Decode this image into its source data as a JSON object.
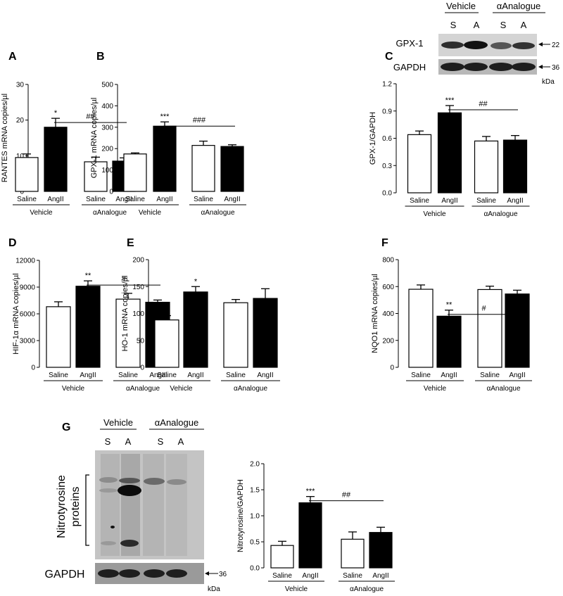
{
  "panels": [
    {
      "id": "A",
      "chart_data": {
        "type": "bar",
        "ylabel": "RANTES mRNA copies/µl",
        "ylim": [
          0,
          30
        ],
        "yticks": [
          "0",
          "10",
          "20",
          "30"
        ],
        "categories": [
          "Saline",
          "AngII",
          "Saline",
          "AngII"
        ],
        "groups": [
          "Vehicle",
          "αAnalogue"
        ],
        "values": [
          9.5,
          18,
          8.3,
          8.5
        ],
        "errors": [
          1.0,
          2.5,
          1.3,
          0.9
        ],
        "fills": [
          "white",
          "black",
          "white",
          "black"
        ],
        "stars": [
          "",
          "*",
          "",
          ""
        ],
        "hash": "##"
      }
    },
    {
      "id": "B",
      "chart_data": {
        "type": "bar",
        "ylabel": "GPX-1 mRNA copies/µl",
        "ylim": [
          0,
          500
        ],
        "yticks": [
          "0",
          "100",
          "200",
          "300",
          "400",
          "500"
        ],
        "categories": [
          "Saline",
          "AngII",
          "Saline",
          "AngII"
        ],
        "groups": [
          "Vehicle",
          "αAnalogue"
        ],
        "values": [
          175,
          305,
          215,
          210
        ],
        "errors": [
          5,
          20,
          20,
          8
        ],
        "fills": [
          "white",
          "black",
          "white",
          "black"
        ],
        "stars": [
          "",
          "***",
          "",
          ""
        ],
        "hash": "###"
      }
    },
    {
      "id": "C",
      "chart_data": {
        "type": "bar",
        "ylabel": "GPX-1/GAPDH",
        "ylim": [
          0,
          1.2
        ],
        "yticks": [
          "0.0",
          "0.3",
          "0.6",
          "0.9",
          "1.2"
        ],
        "categories": [
          "Saline",
          "AngII",
          "Saline",
          "AngII"
        ],
        "groups": [
          "Vehicle",
          "αAnalogue"
        ],
        "values": [
          0.64,
          0.88,
          0.57,
          0.58
        ],
        "errors": [
          0.04,
          0.08,
          0.05,
          0.05
        ],
        "fills": [
          "white",
          "black",
          "white",
          "black"
        ],
        "stars": [
          "",
          "***",
          "",
          ""
        ],
        "hash": "##"
      }
    },
    {
      "id": "D",
      "chart_data": {
        "type": "bar",
        "ylabel": "HIF-1α mRNA copies/µl",
        "ylim": [
          0,
          12000
        ],
        "yticks": [
          "0",
          "3000",
          "6000",
          "9000",
          "12000"
        ],
        "categories": [
          "Saline",
          "AngII",
          "Saline",
          "AngII"
        ],
        "groups": [
          "Vehicle",
          "αAnalogue"
        ],
        "values": [
          6800,
          9100,
          7650,
          7300
        ],
        "errors": [
          550,
          600,
          650,
          250
        ],
        "fills": [
          "white",
          "black",
          "white",
          "black"
        ],
        "stars": [
          "",
          "**",
          "",
          ""
        ],
        "hash": "#"
      }
    },
    {
      "id": "E",
      "chart_data": {
        "type": "bar",
        "ylabel": "HO-1 mRNA copies/µl",
        "ylim": [
          0,
          200
        ],
        "yticks": [
          "0",
          "50",
          "100",
          "150",
          "200"
        ],
        "categories": [
          "Saline",
          "AngII",
          "Saline",
          "AngII"
        ],
        "groups": [
          "Vehicle",
          "αAnalogue"
        ],
        "values": [
          88,
          140,
          120,
          128
        ],
        "errors": [
          8,
          10,
          6,
          18
        ],
        "fills": [
          "white",
          "black",
          "white",
          "black"
        ],
        "stars": [
          "",
          "*",
          "",
          ""
        ],
        "hash": ""
      }
    },
    {
      "id": "F",
      "chart_data": {
        "type": "bar",
        "ylabel": "NQO1 mRNA copies/µl",
        "ylim": [
          0,
          800
        ],
        "yticks": [
          "0",
          "200",
          "400",
          "600",
          "800"
        ],
        "categories": [
          "Saline",
          "AngII",
          "Saline",
          "AngII"
        ],
        "groups": [
          "Vehicle",
          "αAnalogue"
        ],
        "values": [
          580,
          380,
          578,
          545
        ],
        "errors": [
          32,
          45,
          25,
          28
        ],
        "fills": [
          "white",
          "black",
          "white",
          "black"
        ],
        "stars": [
          "",
          "**",
          "",
          ""
        ],
        "hash": "#"
      }
    },
    {
      "id": "G",
      "chart_data": {
        "type": "bar",
        "ylabel": "Nitrotyrosine/GAPDH",
        "ylim": [
          0,
          2.0
        ],
        "yticks": [
          "0.0",
          "0.5",
          "1.0",
          "1.5",
          "2.0"
        ],
        "categories": [
          "Saline",
          "AngII",
          "Saline",
          "AngII"
        ],
        "groups": [
          "Vehicle",
          "αAnalogue"
        ],
        "values": [
          0.43,
          1.25,
          0.55,
          0.68
        ],
        "errors": [
          0.08,
          0.12,
          0.14,
          0.1
        ],
        "fills": [
          "white",
          "black",
          "white",
          "black"
        ],
        "stars": [
          "",
          "***",
          "",
          ""
        ],
        "hash": "##"
      }
    }
  ],
  "blot_c": {
    "groups": [
      "Vehicle",
      "αAnalogue"
    ],
    "lanes": [
      "S",
      "A",
      "S",
      "A"
    ],
    "rows": [
      "GPX-1",
      "GAPDH"
    ],
    "markers": [
      "22",
      "36"
    ],
    "unit": "kDa"
  },
  "blot_g": {
    "groups": [
      "Vehicle",
      "αAnalogue"
    ],
    "lanes": [
      "S",
      "A",
      "S",
      "A"
    ],
    "side_label_1": "Nitrotyrosine",
    "side_label_2": "proteins",
    "gapdh": "GAPDH",
    "marker": "36",
    "unit": "kDa"
  }
}
